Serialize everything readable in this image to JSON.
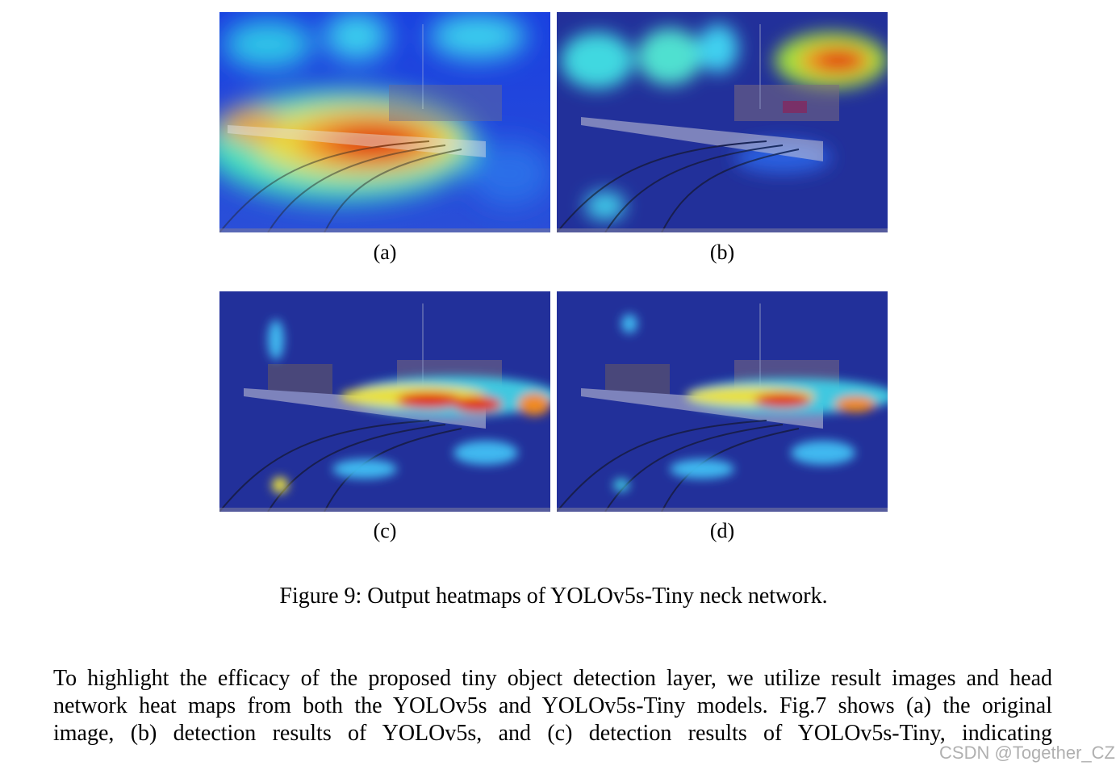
{
  "figure": {
    "panels": [
      {
        "id": "a",
        "label": "(a)"
      },
      {
        "id": "b",
        "label": "(b)"
      },
      {
        "id": "c",
        "label": "(c)"
      },
      {
        "id": "d",
        "label": "(d)"
      }
    ],
    "caption": "Figure 9: Output heatmaps of YOLOv5s-Tiny neck network."
  },
  "body": {
    "lines": [
      "To highlight the efficacy of the proposed tiny object detection layer, we utilize result images and head",
      "network heat maps from both the YOLOv5s and YOLOv5s-Tiny models. Fig.7 shows (a) the original",
      "image, (b) detection results of YOLOv5s, and (c) detection results of YOLOv5s-Tiny, indicating"
    ]
  },
  "watermark": "CSDN @Together_CZ"
}
